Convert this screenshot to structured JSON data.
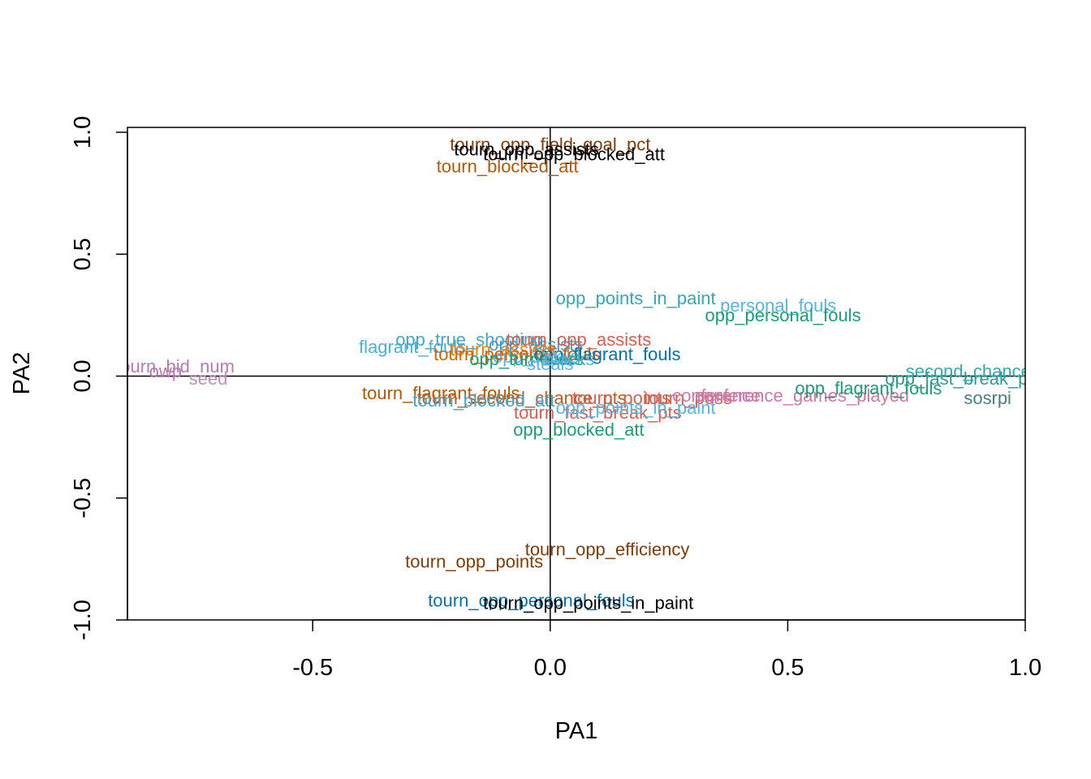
{
  "chart_data": {
    "type": "scatter",
    "title": "",
    "xlabel": "PA1",
    "ylabel": "PA2",
    "xlim": [
      -0.89,
      1.0
    ],
    "ylim": [
      -1.0,
      1.02
    ],
    "x_ticks": [
      -0.5,
      0.0,
      0.5,
      1.0
    ],
    "x_tick_labels": [
      "-0.5",
      "0.0",
      "0.5",
      "1.0"
    ],
    "y_ticks": [
      -1.0,
      -0.5,
      0.0,
      0.5,
      1.0
    ],
    "y_tick_labels": [
      "-1.0",
      "-0.5",
      "0.0",
      "0.5",
      "1.0"
    ],
    "reference_lines": {
      "x": 0,
      "y": 0
    },
    "grid": false,
    "legend": "none",
    "points": [
      {
        "label": "tourn_opp_field_goal_pct",
        "x": 0.0,
        "y": 0.95,
        "color": "#7f3b08"
      },
      {
        "label": "tourn_opp_assists",
        "x": -0.05,
        "y": 0.93,
        "color": "#000000"
      },
      {
        "label": "tourn_opp_blocked_att",
        "x": 0.05,
        "y": 0.91,
        "color": "#000000"
      },
      {
        "label": "tourn_blocked_att",
        "x": -0.09,
        "y": 0.86,
        "color": "#b35806"
      },
      {
        "label": "opp_points_in_paint",
        "x": 0.18,
        "y": 0.32,
        "color": "#35a7b0"
      },
      {
        "label": "personal_fouls",
        "x": 0.48,
        "y": 0.29,
        "color": "#56b4e9"
      },
      {
        "label": "opp_personal_fouls",
        "x": 0.49,
        "y": 0.25,
        "color": "#1b9e77"
      },
      {
        "label": "opp_true_shooting",
        "x": -0.17,
        "y": 0.15,
        "color": "#41a6c8"
      },
      {
        "label": "flagrant_fouls",
        "x": -0.29,
        "y": 0.12,
        "color": "#4db0d9"
      },
      {
        "label": "opp_assists",
        "x": -0.03,
        "y": 0.13,
        "color": "#3f9fd0"
      },
      {
        "label": "tourn_opp_assists",
        "x": 0.06,
        "y": 0.15,
        "color": "#d6604d"
      },
      {
        "label": "tourn_assists",
        "x": -0.1,
        "y": 0.11,
        "color": "#e08214"
      },
      {
        "label": "opp_steals",
        "x": -0.03,
        "y": 0.08,
        "color": "#6baed6"
      },
      {
        "label": "tourn_personal_fouls",
        "x": -0.07,
        "y": 0.09,
        "color": "#d95f02"
      },
      {
        "label": "opp_flagrant_fouls",
        "x": 0.12,
        "y": 0.09,
        "color": "#0072b2"
      },
      {
        "label": "opp_turnovers",
        "x": -0.05,
        "y": 0.07,
        "color": "#1b9e77"
      },
      {
        "label": "steals",
        "x": 0.0,
        "y": 0.05,
        "color": "#56b4e9"
      },
      {
        "label": "blocks",
        "x": 0.04,
        "y": 0.07,
        "color": "#4db0d9"
      },
      {
        "label": "tourn_bid_num",
        "x": -0.79,
        "y": 0.04,
        "color": "#b87ab0"
      },
      {
        "label": "owp",
        "x": -0.81,
        "y": 0.02,
        "color": "#b87ab0"
      },
      {
        "label": "seed",
        "x": -0.72,
        "y": -0.01,
        "color": "#c08fb8"
      },
      {
        "label": "tourn_flagrant_fouls",
        "x": -0.23,
        "y": -0.07,
        "color": "#b35806"
      },
      {
        "label": "tourn_second_chance_pts",
        "x": -0.06,
        "y": -0.09,
        "color": "#c65a1e"
      },
      {
        "label": "tourn_blocked_att",
        "x": -0.14,
        "y": -0.1,
        "color": "#41a6c8"
      },
      {
        "label": "tourn_points",
        "x": 0.15,
        "y": -0.09,
        "color": "#d6604d"
      },
      {
        "label": "tourn_fast_break_pts",
        "x": 0.1,
        "y": -0.15,
        "color": "#d6604d"
      },
      {
        "label": "opp_points_in_paint",
        "x": 0.18,
        "y": -0.13,
        "color": "#56b4e9"
      },
      {
        "label": "tourn_poss",
        "x": 0.29,
        "y": -0.09,
        "color": "#d6604d"
      },
      {
        "label": "conference",
        "x": 0.35,
        "y": -0.08,
        "color": "#cc79a7"
      },
      {
        "label": "conference_games_played",
        "x": 0.53,
        "y": -0.08,
        "color": "#cc79a7"
      },
      {
        "label": "opp_blocked_att",
        "x": 0.06,
        "y": -0.22,
        "color": "#1b9e77"
      },
      {
        "label": "opp_flagrant_fouls",
        "x": 0.67,
        "y": -0.05,
        "color": "#1b9e77"
      },
      {
        "label": "opp_fast_break_pts",
        "x": 0.87,
        "y": -0.01,
        "color": "#2a9d8f"
      },
      {
        "label": "second_chance",
        "x": 0.88,
        "y": 0.02,
        "color": "#35a7b0"
      },
      {
        "label": "sos",
        "x": 0.9,
        "y": -0.09,
        "color": "#4a7f80"
      },
      {
        "label": "rpi",
        "x": 0.95,
        "y": -0.09,
        "color": "#4a7f80"
      },
      {
        "label": "tourn_opp_efficiency",
        "x": 0.12,
        "y": -0.71,
        "color": "#7f3b08"
      },
      {
        "label": "tourn_opp_points",
        "x": -0.16,
        "y": -0.76,
        "color": "#7f3b08"
      },
      {
        "label": "tourn_opp_personal_fouls",
        "x": -0.04,
        "y": -0.92,
        "color": "#0072b2"
      },
      {
        "label": "tourn_opp_points_in_paint",
        "x": 0.08,
        "y": -0.93,
        "color": "#000000"
      }
    ]
  }
}
